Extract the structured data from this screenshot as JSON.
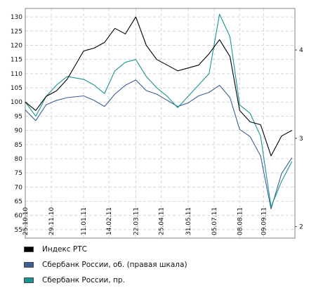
{
  "chart_data": {
    "type": "line",
    "title": "",
    "xlabel": "",
    "ylabel": "",
    "x_ticks": [
      "25.10.10",
      "29.11.10",
      "11.01.11",
      "14.02.11",
      "22.03.11",
      "25.04.11",
      "31.05.11",
      "05.07.11",
      "08.08.11",
      "09.09.11"
    ],
    "left_axis": {
      "ticks": [
        55,
        60,
        65,
        70,
        75,
        80,
        85,
        90,
        95,
        100,
        105,
        110,
        115,
        120,
        125,
        130
      ],
      "range": [
        52,
        133
      ]
    },
    "right_axis": {
      "ticks": [
        2,
        3,
        4
      ],
      "range": [
        1.87,
        4.47
      ]
    },
    "grid": true,
    "legend_position": "bottom",
    "series": [
      {
        "name": "Индекс РТС",
        "axis": "left",
        "color": "#000000",
        "x": [
          "25.10.10",
          "08.11.10",
          "22.11.10",
          "06.12.10",
          "20.12.10",
          "11.01.11",
          "25.01.11",
          "08.02.11",
          "22.02.11",
          "08.03.11",
          "22.03.11",
          "05.04.11",
          "19.04.11",
          "03.05.11",
          "17.05.11",
          "31.05.11",
          "14.06.11",
          "28.06.11",
          "12.07.11",
          "26.07.11",
          "08.08.11",
          "22.08.11",
          "05.09.11",
          "19.09.11",
          "03.10.11",
          "17.10.11"
        ],
        "values": [
          100,
          97,
          102,
          104,
          108,
          118,
          119,
          121,
          126,
          124,
          130,
          120,
          115,
          113,
          111,
          112,
          113,
          117,
          122,
          116,
          97,
          93,
          92,
          81,
          88,
          90
        ]
      },
      {
        "name": "Сбербанк России, об. (правая шкала)",
        "axis": "right",
        "color": "#3e5f93",
        "x": [
          "25.10.10",
          "08.11.10",
          "22.11.10",
          "06.12.10",
          "20.12.10",
          "11.01.11",
          "25.01.11",
          "08.02.11",
          "22.02.11",
          "08.03.11",
          "22.03.11",
          "05.04.11",
          "19.04.11",
          "03.05.11",
          "17.05.11",
          "31.05.11",
          "14.06.11",
          "28.06.11",
          "12.07.11",
          "26.07.11",
          "08.08.11",
          "22.08.11",
          "05.09.11",
          "19.09.11",
          "03.10.11",
          "17.10.11"
        ],
        "values": [
          3.32,
          3.2,
          3.38,
          3.43,
          3.46,
          3.48,
          3.43,
          3.36,
          3.5,
          3.6,
          3.66,
          3.54,
          3.5,
          3.43,
          3.36,
          3.4,
          3.48,
          3.52,
          3.6,
          3.46,
          3.1,
          3.02,
          2.8,
          2.2,
          2.6,
          2.78
        ]
      },
      {
        "name": "Сбербанк России, пр.",
        "axis": "left",
        "color": "#1a9493",
        "x": [
          "25.10.10",
          "08.11.10",
          "22.11.10",
          "06.12.10",
          "20.12.10",
          "11.01.11",
          "25.01.11",
          "08.02.11",
          "22.02.11",
          "08.03.11",
          "22.03.11",
          "05.04.11",
          "19.04.11",
          "03.05.11",
          "17.05.11",
          "31.05.11",
          "14.06.11",
          "28.06.11",
          "12.07.11",
          "26.07.11",
          "08.08.11",
          "22.08.11",
          "05.09.11",
          "19.09.11",
          "03.10.11",
          "17.10.11"
        ],
        "values": [
          100,
          95,
          102,
          106,
          109,
          108,
          106,
          103,
          111,
          114,
          115,
          109,
          105,
          102,
          98,
          102,
          106,
          110,
          131,
          123,
          99,
          96,
          88,
          63,
          72,
          79
        ]
      }
    ]
  }
}
